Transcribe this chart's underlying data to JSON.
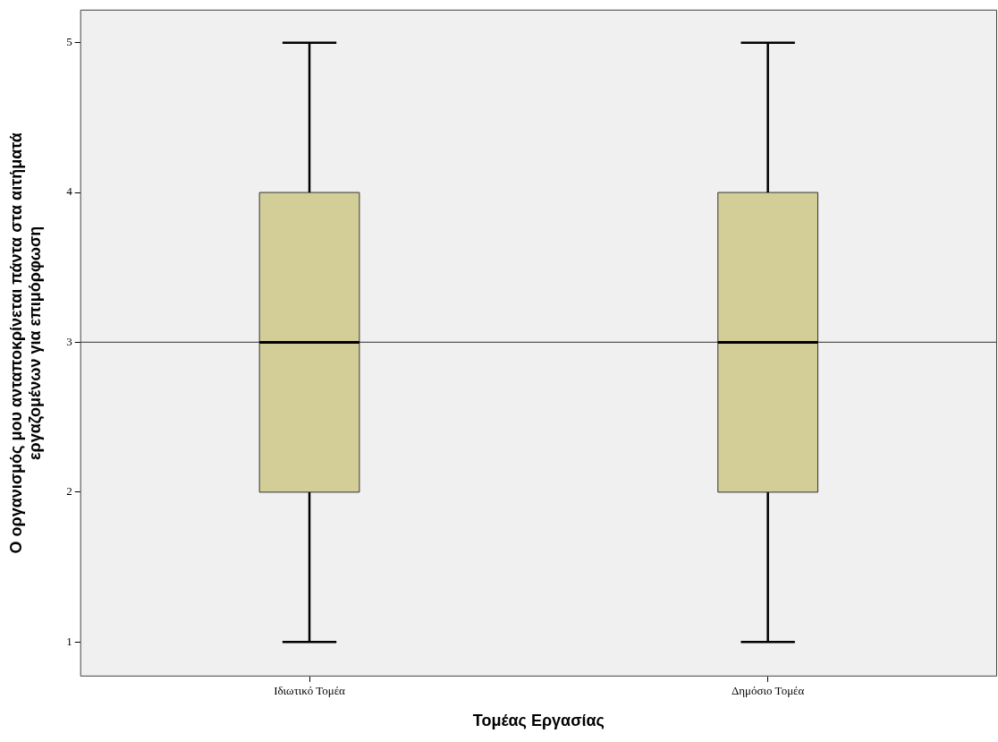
{
  "chart_data": {
    "type": "box",
    "xlabel": "Τομέας Εργασίας",
    "ylabel": "Ο οργανισμός μου ανταποκρίνεται πάντα στα αιτήματά\nεργαζομένων για επιμόρφωση",
    "categories": [
      "Ιδιωτικό Τομέα",
      "Δημόσιο Τομέα"
    ],
    "boxes": [
      {
        "low": 1,
        "q1": 2,
        "median": 3,
        "q3": 4,
        "high": 5
      },
      {
        "low": 1,
        "q1": 2,
        "median": 3,
        "q3": 4,
        "high": 5
      }
    ],
    "color": "#d3ce97",
    "ylim": [
      0.77,
      5.22
    ],
    "yticks": [
      1,
      2,
      3,
      4,
      5
    ],
    "ref_lines": [
      {
        "axis": "y",
        "value": 3,
        "color": "#555555"
      }
    ]
  }
}
